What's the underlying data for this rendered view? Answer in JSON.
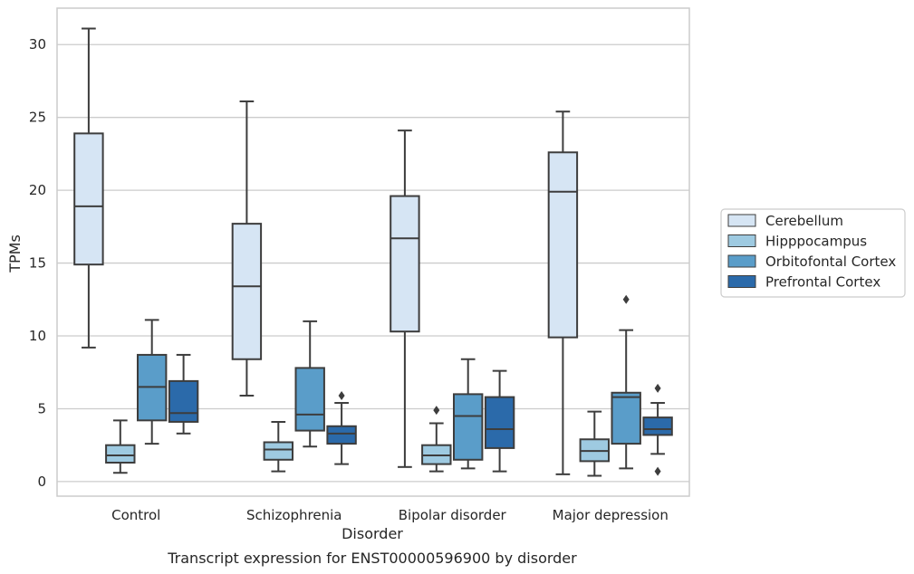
{
  "chart_data": {
    "type": "box",
    "xlabel": "Disorder",
    "ylabel": "TPMs",
    "caption": "Transcript expression for ENST00000596900 by disorder",
    "ylim": [
      -1,
      32.5
    ],
    "yticks": [
      0,
      5,
      10,
      15,
      20,
      25,
      30
    ],
    "grid": "horizontal",
    "legend_position": "right",
    "categories": [
      "Control",
      "Schizophrenia",
      "Bipolar disorder",
      "Major depression"
    ],
    "series": [
      {
        "name": "Cerebellum",
        "color": "#d6e5f4",
        "boxes": [
          {
            "whisker_low": 9.2,
            "q1": 14.9,
            "median": 18.9,
            "q3": 23.9,
            "whisker_high": 31.1,
            "outliers": []
          },
          {
            "whisker_low": 5.9,
            "q1": 8.4,
            "median": 13.4,
            "q3": 17.7,
            "whisker_high": 26.1,
            "outliers": []
          },
          {
            "whisker_low": 1.0,
            "q1": 10.3,
            "median": 16.7,
            "q3": 19.6,
            "whisker_high": 24.1,
            "outliers": []
          },
          {
            "whisker_low": 0.5,
            "q1": 9.9,
            "median": 19.9,
            "q3": 22.6,
            "whisker_high": 25.4,
            "outliers": []
          }
        ]
      },
      {
        "name": "Hipppocampus",
        "color": "#9ecae1",
        "boxes": [
          {
            "whisker_low": 0.6,
            "q1": 1.3,
            "median": 1.8,
            "q3": 2.5,
            "whisker_high": 4.2,
            "outliers": []
          },
          {
            "whisker_low": 0.7,
            "q1": 1.5,
            "median": 2.2,
            "q3": 2.7,
            "whisker_high": 4.1,
            "outliers": []
          },
          {
            "whisker_low": 0.7,
            "q1": 1.2,
            "median": 1.8,
            "q3": 2.5,
            "whisker_high": 4.0,
            "outliers": [
              4.9
            ]
          },
          {
            "whisker_low": 0.4,
            "q1": 1.4,
            "median": 2.1,
            "q3": 2.9,
            "whisker_high": 4.8,
            "outliers": []
          }
        ]
      },
      {
        "name": "Orbitofontal Cortex",
        "color": "#5a9dc9",
        "boxes": [
          {
            "whisker_low": 2.6,
            "q1": 4.2,
            "median": 6.5,
            "q3": 8.7,
            "whisker_high": 11.1,
            "outliers": []
          },
          {
            "whisker_low": 2.4,
            "q1": 3.5,
            "median": 4.6,
            "q3": 7.8,
            "whisker_high": 11.0,
            "outliers": []
          },
          {
            "whisker_low": 0.9,
            "q1": 1.5,
            "median": 4.5,
            "q3": 6.0,
            "whisker_high": 8.4,
            "outliers": []
          },
          {
            "whisker_low": 0.9,
            "q1": 2.6,
            "median": 5.8,
            "q3": 6.1,
            "whisker_high": 10.4,
            "outliers": [
              12.5
            ]
          }
        ]
      },
      {
        "name": "Prefrontal Cortex",
        "color": "#2b6aaa",
        "boxes": [
          {
            "whisker_low": 3.3,
            "q1": 4.1,
            "median": 4.7,
            "q3": 6.9,
            "whisker_high": 8.7,
            "outliers": []
          },
          {
            "whisker_low": 1.2,
            "q1": 2.6,
            "median": 3.3,
            "q3": 3.8,
            "whisker_high": 5.4,
            "outliers": [
              5.9
            ]
          },
          {
            "whisker_low": 0.7,
            "q1": 2.3,
            "median": 3.6,
            "q3": 5.8,
            "whisker_high": 7.6,
            "outliers": []
          },
          {
            "whisker_low": 1.9,
            "q1": 3.2,
            "median": 3.6,
            "q3": 4.4,
            "whisker_high": 5.4,
            "outliers": [
              6.4,
              0.7
            ]
          }
        ]
      }
    ]
  }
}
